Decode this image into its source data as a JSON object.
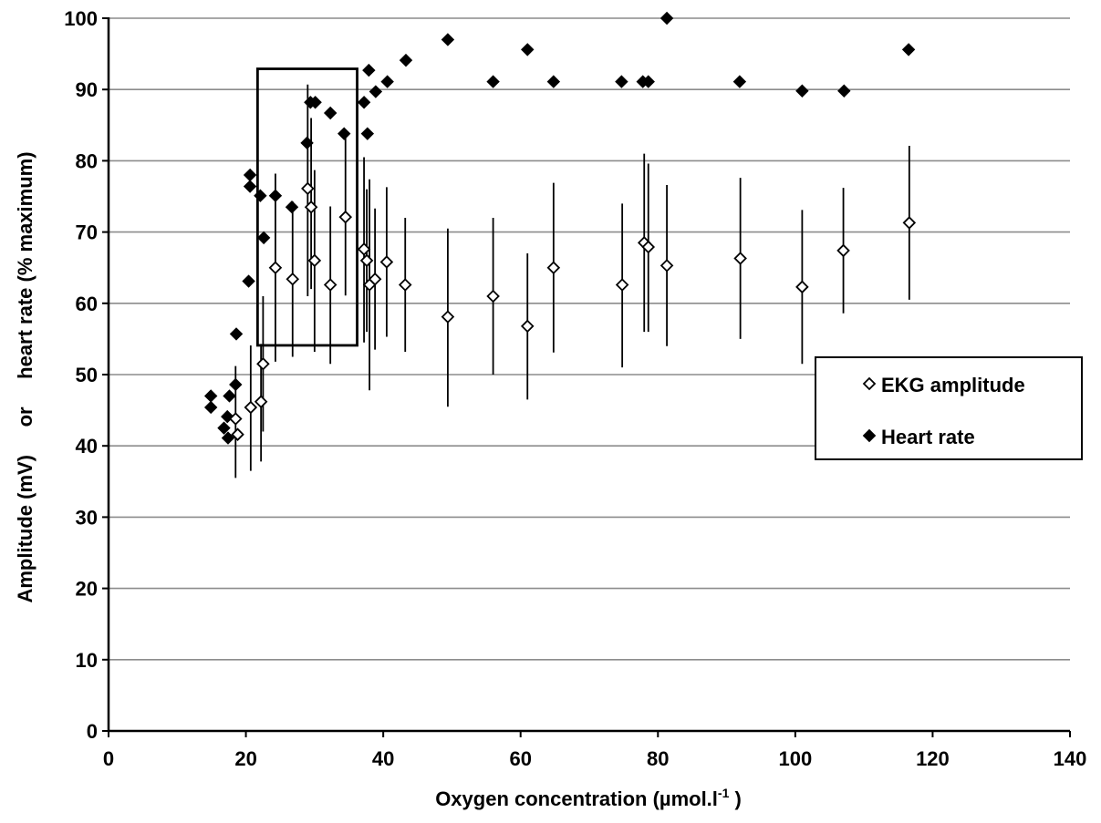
{
  "chart_data": {
    "type": "scatter",
    "title": "",
    "xlabel": "Oxygen concentration  (µmol.l",
    "xlabel_sup": "-1",
    "xlabel_tail": " )",
    "ylabel": "Amplitude (mV)     or     heart rate (% maximum)",
    "xlim": [
      0,
      140
    ],
    "ylim": [
      0,
      100
    ],
    "x_ticks": [
      0,
      20,
      40,
      60,
      80,
      100,
      120,
      140
    ],
    "y_ticks": [
      0,
      10,
      20,
      30,
      40,
      50,
      60,
      70,
      80,
      90,
      100
    ],
    "grid": "horizontal",
    "legend_position": "right",
    "marker_style": {
      "ekg": {
        "shape": "diamond",
        "fill": "#ffffff",
        "stroke": "#000000"
      },
      "hr": {
        "shape": "diamond",
        "fill": "#000000",
        "stroke": "#000000"
      }
    },
    "series": [
      {
        "name": "EKG amplitude",
        "points": [
          {
            "x": 18.5,
            "y": 43.8,
            "lo": 35.5,
            "hi": 51.2
          },
          {
            "x": 18.8,
            "y": 41.6
          },
          {
            "x": 20.7,
            "y": 45.4,
            "lo": 36.5,
            "hi": 54.1
          },
          {
            "x": 22.2,
            "y": 46.2,
            "lo": 37.8,
            "hi": 54.3
          },
          {
            "x": 22.5,
            "y": 51.5,
            "lo": 42.0,
            "hi": 61.0
          },
          {
            "x": 24.3,
            "y": 65.0,
            "lo": 51.8,
            "hi": 78.2
          },
          {
            "x": 26.8,
            "y": 63.4,
            "lo": 52.5,
            "hi": 74.3
          },
          {
            "x": 29.0,
            "y": 76.1,
            "lo": 61.0,
            "hi": 90.7
          },
          {
            "x": 29.5,
            "y": 73.5,
            "lo": 62.0,
            "hi": 86.0
          },
          {
            "x": 30.0,
            "y": 66.0,
            "lo": 53.2,
            "hi": 78.7
          },
          {
            "x": 32.3,
            "y": 62.6,
            "lo": 51.5,
            "hi": 73.6
          },
          {
            "x": 34.5,
            "y": 72.1,
            "lo": 61.1,
            "hi": 83.5
          },
          {
            "x": 37.2,
            "y": 67.6,
            "lo": 54.5,
            "hi": 80.5
          },
          {
            "x": 37.6,
            "y": 66.0,
            "lo": 56.0,
            "hi": 76.0
          },
          {
            "x": 38.0,
            "y": 62.6,
            "lo": 47.8,
            "hi": 77.4
          },
          {
            "x": 38.8,
            "y": 63.4,
            "lo": 53.5,
            "hi": 73.3
          },
          {
            "x": 40.5,
            "y": 65.8,
            "lo": 55.3,
            "hi": 76.3
          },
          {
            "x": 43.2,
            "y": 62.6,
            "lo": 53.2,
            "hi": 72.0
          },
          {
            "x": 49.4,
            "y": 58.1,
            "lo": 45.5,
            "hi": 70.5
          },
          {
            "x": 56.0,
            "y": 61.0,
            "lo": 50.0,
            "hi": 72.0
          },
          {
            "x": 61.0,
            "y": 56.8,
            "lo": 46.5,
            "hi": 67.0
          },
          {
            "x": 64.8,
            "y": 65.0,
            "lo": 53.1,
            "hi": 76.9
          },
          {
            "x": 74.8,
            "y": 62.6,
            "lo": 51.0,
            "hi": 74.0
          },
          {
            "x": 78.0,
            "y": 68.5,
            "lo": 56.0,
            "hi": 81.0
          },
          {
            "x": 78.6,
            "y": 67.9,
            "lo": 56.0,
            "hi": 79.6
          },
          {
            "x": 81.3,
            "y": 65.3,
            "lo": 54.0,
            "hi": 76.6
          },
          {
            "x": 92.0,
            "y": 66.3,
            "lo": 55.0,
            "hi": 77.6
          },
          {
            "x": 101.0,
            "y": 62.3,
            "lo": 51.5,
            "hi": 73.1
          },
          {
            "x": 107.0,
            "y": 67.4,
            "lo": 58.6,
            "hi": 76.2
          },
          {
            "x": 116.6,
            "y": 71.3,
            "lo": 60.5,
            "hi": 82.1
          }
        ]
      },
      {
        "name": "Heart rate",
        "points": [
          {
            "x": 14.9,
            "y": 47.0
          },
          {
            "x": 14.9,
            "y": 45.4
          },
          {
            "x": 16.8,
            "y": 42.5
          },
          {
            "x": 17.3,
            "y": 44.1
          },
          {
            "x": 17.4,
            "y": 41.1
          },
          {
            "x": 17.6,
            "y": 47.0
          },
          {
            "x": 18.5,
            "y": 48.6
          },
          {
            "x": 18.6,
            "y": 55.7
          },
          {
            "x": 20.4,
            "y": 63.1
          },
          {
            "x": 20.6,
            "y": 78.0
          },
          {
            "x": 20.6,
            "y": 76.4
          },
          {
            "x": 22.1,
            "y": 75.1
          },
          {
            "x": 22.6,
            "y": 69.2
          },
          {
            "x": 24.3,
            "y": 75.1
          },
          {
            "x": 26.7,
            "y": 73.5
          },
          {
            "x": 28.9,
            "y": 82.5
          },
          {
            "x": 29.4,
            "y": 88.2
          },
          {
            "x": 30.1,
            "y": 88.2
          },
          {
            "x": 32.3,
            "y": 86.7
          },
          {
            "x": 34.3,
            "y": 83.8
          },
          {
            "x": 37.2,
            "y": 88.2
          },
          {
            "x": 37.7,
            "y": 83.8
          },
          {
            "x": 37.9,
            "y": 92.7
          },
          {
            "x": 38.9,
            "y": 89.7
          },
          {
            "x": 40.6,
            "y": 91.1
          },
          {
            "x": 43.3,
            "y": 94.1
          },
          {
            "x": 49.4,
            "y": 97.0
          },
          {
            "x": 56.0,
            "y": 91.1
          },
          {
            "x": 61.0,
            "y": 95.6
          },
          {
            "x": 64.8,
            "y": 91.1
          },
          {
            "x": 74.7,
            "y": 91.1
          },
          {
            "x": 77.8,
            "y": 91.1
          },
          {
            "x": 78.6,
            "y": 91.1
          },
          {
            "x": 81.3,
            "y": 100.0
          },
          {
            "x": 91.9,
            "y": 91.1
          },
          {
            "x": 101.0,
            "y": 89.8
          },
          {
            "x": 107.1,
            "y": 89.8
          },
          {
            "x": 116.5,
            "y": 95.6
          }
        ]
      }
    ],
    "annotations": [
      {
        "type": "rectangle",
        "x0": 21.7,
        "x1": 36.2,
        "y0": 54.1,
        "y1": 92.9
      }
    ]
  }
}
